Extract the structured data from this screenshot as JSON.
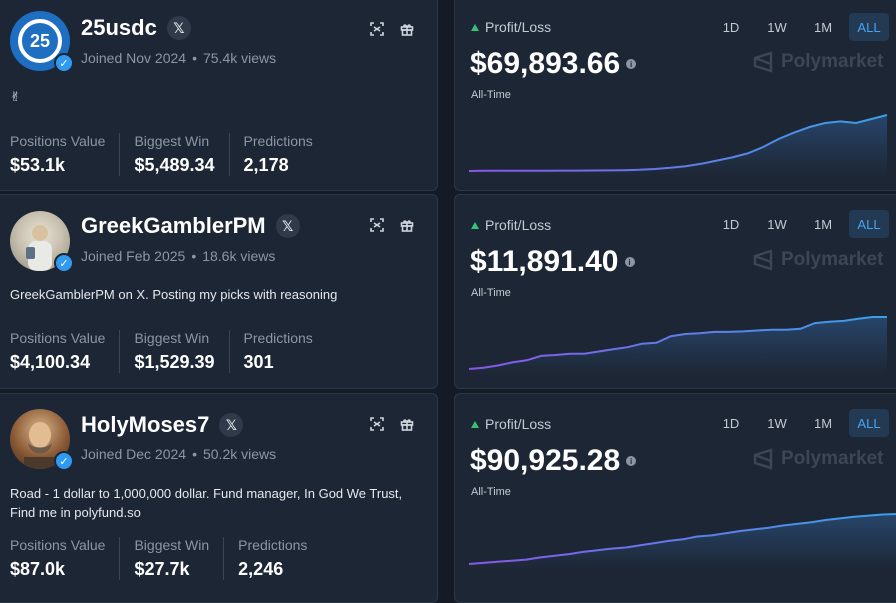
{
  "ui": {
    "views_dot": "•",
    "verified_glyph": "✓",
    "x_glyph": "𝕏"
  },
  "pnl_common": {
    "label": "Profit/Loss",
    "sublabel": "All-Time",
    "ranges": [
      "1D",
      "1W",
      "1M",
      "ALL"
    ],
    "active_range": "ALL",
    "brand": "Polymarket"
  },
  "colors": {
    "accent": "#4aa3f0",
    "up": "#36c275",
    "line_start": "#8a56e8",
    "line_end": "#3aa0e8"
  },
  "traders": [
    {
      "username": "25usdc",
      "avatar_text": "25",
      "joined": "Joined Nov 2024",
      "views": "75.4k views",
      "bio": "✌",
      "stats": [
        {
          "label": "Positions Value",
          "value": "$53.1k"
        },
        {
          "label": "Biggest Win",
          "value": "$5,489.34"
        },
        {
          "label": "Predictions",
          "value": "2,178"
        }
      ],
      "pnl": "$69,893.66",
      "pnl_series": [
        0,
        0.2,
        0.3,
        0.3,
        0.3,
        0.4,
        0.5,
        0.5,
        0.6,
        0.8,
        1,
        1.5,
        2.5,
        4,
        6,
        9,
        13,
        17,
        22,
        30,
        40,
        48,
        55,
        60,
        62,
        60,
        65,
        70
      ]
    },
    {
      "username": "GreekGamblerPM",
      "avatar_text": "",
      "joined": "Joined Feb 2025",
      "views": "18.6k views",
      "bio": "GreekGamblerPM on X. Posting my picks with reasoning",
      "stats": [
        {
          "label": "Positions Value",
          "value": "$4,100.34"
        },
        {
          "label": "Biggest Win",
          "value": "$1,529.39"
        },
        {
          "label": "Predictions",
          "value": "301"
        }
      ],
      "pnl": "$11,891.40",
      "pnl_series": [
        0,
        0.3,
        0.8,
        1.5,
        2,
        3,
        3.2,
        3.5,
        3.5,
        4,
        4.5,
        5,
        5.8,
        6,
        7.5,
        8,
        8.2,
        8.5,
        8.5,
        8.6,
        8.8,
        9,
        9,
        9.2,
        10.5,
        10.8,
        11,
        11.5,
        11.9,
        11.9
      ]
    },
    {
      "username": "HolyMoses7",
      "avatar_text": "",
      "joined": "Joined Dec 2024",
      "views": "50.2k views",
      "bio": "Road - 1 dollar to 1,000,000 dollar. Fund manager, In God We Trust, Find me in polyfund.so",
      "stats": [
        {
          "label": "Positions Value",
          "value": "$87.0k"
        },
        {
          "label": "Biggest Win",
          "value": "$27.7k"
        },
        {
          "label": "Predictions",
          "value": "2,246"
        }
      ],
      "pnl": "$90,925.28",
      "pnl_series": [
        0,
        2,
        4,
        6,
        8,
        12,
        15,
        18,
        22,
        25,
        28,
        30,
        34,
        38,
        42,
        45,
        50,
        52,
        56,
        60,
        63,
        66,
        70,
        73,
        76,
        80,
        83,
        86,
        88,
        90,
        91
      ]
    }
  ]
}
